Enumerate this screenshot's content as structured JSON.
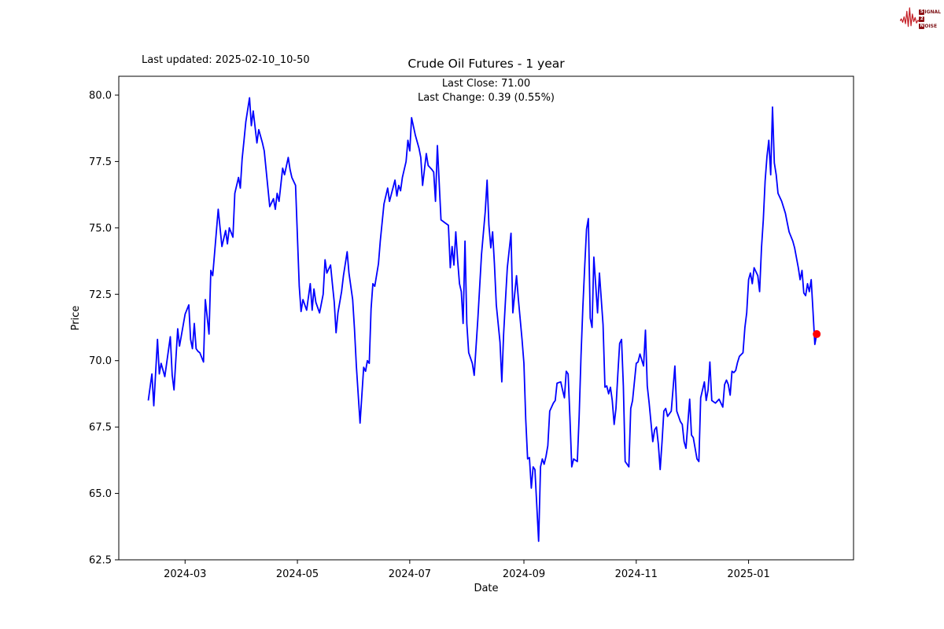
{
  "header": {
    "last_updated": "Last updated: 2025-02-10_10-50"
  },
  "logo": {
    "color": "#c41e25",
    "rows": [
      {
        "badge": "S",
        "rest": "IGNAL"
      },
      {
        "badge": "2",
        "rest": ""
      },
      {
        "badge": "N",
        "rest": "OISE"
      }
    ]
  },
  "chart_data": {
    "type": "line",
    "title": "Crude Oil Futures - 1 year",
    "subtitle1": "Last Close: 71.00",
    "subtitle2": "Last Change: 0.39 (0.55%)",
    "xlabel": "Date",
    "ylabel": "Price",
    "last_close": 71.0,
    "last_change": "0.39 (0.55%)",
    "line_color": "#0000ff",
    "marker_color": "#ff0000",
    "axis_color": "#000000",
    "x_range": [
      "2024-01-25",
      "2025-02-27"
    ],
    "y_range": [
      62.5,
      80.71
    ],
    "x_ticks": [
      {
        "date": "2024-03-01",
        "label": "2024-03"
      },
      {
        "date": "2024-05-01",
        "label": "2024-05"
      },
      {
        "date": "2024-07-01",
        "label": "2024-07"
      },
      {
        "date": "2024-09-01",
        "label": "2024-09"
      },
      {
        "date": "2024-11-01",
        "label": "2024-11"
      },
      {
        "date": "2025-01-01",
        "label": "2025-01"
      }
    ],
    "y_ticks": [
      {
        "value": 62.5,
        "label": "62.5"
      },
      {
        "value": 65.0,
        "label": "65.0"
      },
      {
        "value": 67.5,
        "label": "67.5"
      },
      {
        "value": 70.0,
        "label": "70.0"
      },
      {
        "value": 72.5,
        "label": "72.5"
      },
      {
        "value": 75.0,
        "label": "75.0"
      },
      {
        "value": 77.5,
        "label": "77.5"
      },
      {
        "value": 80.0,
        "label": "80.0"
      }
    ],
    "series": [
      [
        "2024-02-10",
        68.5
      ],
      [
        "2024-02-12",
        69.5
      ],
      [
        "2024-02-13",
        68.3
      ],
      [
        "2024-02-15",
        70.8
      ],
      [
        "2024-02-16",
        69.5
      ],
      [
        "2024-02-17",
        69.9
      ],
      [
        "2024-02-19",
        69.4
      ],
      [
        "2024-02-22",
        70.9
      ],
      [
        "2024-02-23",
        69.45
      ],
      [
        "2024-02-24",
        68.9
      ],
      [
        "2024-02-26",
        71.2
      ],
      [
        "2024-02-27",
        70.55
      ],
      [
        "2024-03-01",
        71.75
      ],
      [
        "2024-03-03",
        72.1
      ],
      [
        "2024-03-04",
        70.8
      ],
      [
        "2024-03-05",
        70.45
      ],
      [
        "2024-03-06",
        71.4
      ],
      [
        "2024-03-07",
        70.45
      ],
      [
        "2024-03-08",
        70.35
      ],
      [
        "2024-03-09",
        70.3
      ],
      [
        "2024-03-11",
        69.95
      ],
      [
        "2024-03-12",
        72.3
      ],
      [
        "2024-03-14",
        71.0
      ],
      [
        "2024-03-15",
        73.4
      ],
      [
        "2024-03-16",
        73.2
      ],
      [
        "2024-03-19",
        75.7
      ],
      [
        "2024-03-21",
        74.3
      ],
      [
        "2024-03-23",
        74.9
      ],
      [
        "2024-03-24",
        74.4
      ],
      [
        "2024-03-25",
        75.0
      ],
      [
        "2024-03-27",
        74.65
      ],
      [
        "2024-03-28",
        76.3
      ],
      [
        "2024-03-30",
        76.9
      ],
      [
        "2024-03-31",
        76.5
      ],
      [
        "2024-04-01",
        77.6
      ],
      [
        "2024-04-02",
        78.3
      ],
      [
        "2024-04-03",
        79.0
      ],
      [
        "2024-04-05",
        79.9
      ],
      [
        "2024-04-06",
        78.85
      ],
      [
        "2024-04-07",
        79.4
      ],
      [
        "2024-04-09",
        78.2
      ],
      [
        "2024-04-10",
        78.7
      ],
      [
        "2024-04-12",
        78.2
      ],
      [
        "2024-04-13",
        77.9
      ],
      [
        "2024-04-16",
        75.8
      ],
      [
        "2024-04-18",
        76.1
      ],
      [
        "2024-04-19",
        75.7
      ],
      [
        "2024-04-20",
        76.3
      ],
      [
        "2024-04-21",
        76.0
      ],
      [
        "2024-04-23",
        77.25
      ],
      [
        "2024-04-24",
        77.0
      ],
      [
        "2024-04-26",
        77.65
      ],
      [
        "2024-04-27",
        77.2
      ],
      [
        "2024-04-28",
        76.9
      ],
      [
        "2024-04-30",
        76.6
      ],
      [
        "2024-05-02",
        72.8
      ],
      [
        "2024-05-03",
        71.85
      ],
      [
        "2024-05-04",
        72.3
      ],
      [
        "2024-05-06",
        71.9
      ],
      [
        "2024-05-08",
        72.9
      ],
      [
        "2024-05-09",
        71.9
      ],
      [
        "2024-05-10",
        72.7
      ],
      [
        "2024-05-11",
        72.2
      ],
      [
        "2024-05-13",
        71.8
      ],
      [
        "2024-05-15",
        72.5
      ],
      [
        "2024-05-16",
        73.8
      ],
      [
        "2024-05-17",
        73.3
      ],
      [
        "2024-05-19",
        73.6
      ],
      [
        "2024-05-20",
        72.9
      ],
      [
        "2024-05-21",
        72.2
      ],
      [
        "2024-05-22",
        71.05
      ],
      [
        "2024-05-23",
        71.8
      ],
      [
        "2024-05-25",
        72.6
      ],
      [
        "2024-05-26",
        73.2
      ],
      [
        "2024-05-28",
        74.1
      ],
      [
        "2024-05-29",
        73.3
      ],
      [
        "2024-05-31",
        72.3
      ],
      [
        "2024-06-01",
        71.2
      ],
      [
        "2024-06-02",
        69.8
      ],
      [
        "2024-06-04",
        67.65
      ],
      [
        "2024-06-06",
        69.75
      ],
      [
        "2024-06-07",
        69.6
      ],
      [
        "2024-06-08",
        70.0
      ],
      [
        "2024-06-09",
        69.9
      ],
      [
        "2024-06-10",
        71.95
      ],
      [
        "2024-06-11",
        72.9
      ],
      [
        "2024-06-12",
        72.8
      ],
      [
        "2024-06-14",
        73.65
      ],
      [
        "2024-06-15",
        74.5
      ],
      [
        "2024-06-17",
        75.9
      ],
      [
        "2024-06-19",
        76.5
      ],
      [
        "2024-06-20",
        76.0
      ],
      [
        "2024-06-23",
        76.8
      ],
      [
        "2024-06-24",
        76.2
      ],
      [
        "2024-06-25",
        76.6
      ],
      [
        "2024-06-26",
        76.4
      ],
      [
        "2024-06-27",
        76.9
      ],
      [
        "2024-06-29",
        77.5
      ],
      [
        "2024-06-30",
        78.3
      ],
      [
        "2024-07-01",
        77.9
      ],
      [
        "2024-07-02",
        79.15
      ],
      [
        "2024-07-04",
        78.5
      ],
      [
        "2024-07-06",
        78.0
      ],
      [
        "2024-07-07",
        77.65
      ],
      [
        "2024-07-08",
        76.6
      ],
      [
        "2024-07-10",
        77.8
      ],
      [
        "2024-07-11",
        77.35
      ],
      [
        "2024-07-13",
        77.2
      ],
      [
        "2024-07-14",
        77.1
      ],
      [
        "2024-07-15",
        76.0
      ],
      [
        "2024-07-16",
        78.1
      ],
      [
        "2024-07-18",
        75.3
      ],
      [
        "2024-07-19",
        75.25
      ],
      [
        "2024-07-20",
        75.2
      ],
      [
        "2024-07-22",
        75.1
      ],
      [
        "2024-07-23",
        73.5
      ],
      [
        "2024-07-24",
        74.3
      ],
      [
        "2024-07-25",
        73.6
      ],
      [
        "2024-07-26",
        74.85
      ],
      [
        "2024-07-27",
        73.8
      ],
      [
        "2024-07-28",
        72.9
      ],
      [
        "2024-07-29",
        72.6
      ],
      [
        "2024-07-30",
        71.4
      ],
      [
        "2024-07-31",
        74.5
      ],
      [
        "2024-08-01",
        71.4
      ],
      [
        "2024-08-02",
        70.3
      ],
      [
        "2024-08-03",
        70.1
      ],
      [
        "2024-08-04",
        69.9
      ],
      [
        "2024-08-05",
        69.45
      ],
      [
        "2024-08-06",
        70.5
      ],
      [
        "2024-08-07",
        71.6
      ],
      [
        "2024-08-08",
        72.8
      ],
      [
        "2024-08-09",
        74.0
      ],
      [
        "2024-08-11",
        75.6
      ],
      [
        "2024-08-12",
        76.8
      ],
      [
        "2024-08-13",
        75.1
      ],
      [
        "2024-08-14",
        74.25
      ],
      [
        "2024-08-15",
        74.85
      ],
      [
        "2024-08-16",
        73.65
      ],
      [
        "2024-08-17",
        72.1
      ],
      [
        "2024-08-19",
        70.7
      ],
      [
        "2024-08-20",
        69.2
      ],
      [
        "2024-08-21",
        71.0
      ],
      [
        "2024-08-22",
        72.3
      ],
      [
        "2024-08-23",
        73.5
      ],
      [
        "2024-08-25",
        74.8
      ],
      [
        "2024-08-26",
        71.8
      ],
      [
        "2024-08-28",
        73.2
      ],
      [
        "2024-08-29",
        72.3
      ],
      [
        "2024-08-31",
        70.8
      ],
      [
        "2024-09-01",
        69.9
      ],
      [
        "2024-09-02",
        67.8
      ],
      [
        "2024-09-03",
        66.3
      ],
      [
        "2024-09-04",
        66.35
      ],
      [
        "2024-09-05",
        65.2
      ],
      [
        "2024-09-06",
        66.0
      ],
      [
        "2024-09-07",
        65.9
      ],
      [
        "2024-09-09",
        63.2
      ],
      [
        "2024-09-10",
        66.0
      ],
      [
        "2024-09-11",
        66.3
      ],
      [
        "2024-09-12",
        66.1
      ],
      [
        "2024-09-13",
        66.4
      ],
      [
        "2024-09-14",
        66.8
      ],
      [
        "2024-09-15",
        68.1
      ],
      [
        "2024-09-17",
        68.4
      ],
      [
        "2024-09-18",
        68.5
      ],
      [
        "2024-09-19",
        69.15
      ],
      [
        "2024-09-21",
        69.2
      ],
      [
        "2024-09-22",
        68.9
      ],
      [
        "2024-09-23",
        68.6
      ],
      [
        "2024-09-24",
        69.6
      ],
      [
        "2024-09-25",
        69.5
      ],
      [
        "2024-09-26",
        67.85
      ],
      [
        "2024-09-27",
        66.0
      ],
      [
        "2024-09-28",
        66.3
      ],
      [
        "2024-09-30",
        66.2
      ],
      [
        "2024-10-01",
        67.9
      ],
      [
        "2024-10-02",
        70.2
      ],
      [
        "2024-10-03",
        72.0
      ],
      [
        "2024-10-04",
        73.5
      ],
      [
        "2024-10-05",
        74.95
      ],
      [
        "2024-10-06",
        75.35
      ],
      [
        "2024-10-07",
        71.6
      ],
      [
        "2024-10-08",
        71.25
      ],
      [
        "2024-10-09",
        73.9
      ],
      [
        "2024-10-11",
        71.8
      ],
      [
        "2024-10-12",
        73.3
      ],
      [
        "2024-10-14",
        71.35
      ],
      [
        "2024-10-15",
        69.0
      ],
      [
        "2024-10-16",
        69.05
      ],
      [
        "2024-10-17",
        68.75
      ],
      [
        "2024-10-18",
        69.0
      ],
      [
        "2024-10-19",
        68.5
      ],
      [
        "2024-10-20",
        67.6
      ],
      [
        "2024-10-21",
        68.2
      ],
      [
        "2024-10-22",
        69.5
      ],
      [
        "2024-10-23",
        70.65
      ],
      [
        "2024-10-24",
        70.8
      ],
      [
        "2024-10-25",
        69.05
      ],
      [
        "2024-10-26",
        66.2
      ],
      [
        "2024-10-27",
        66.1
      ],
      [
        "2024-10-28",
        66.0
      ],
      [
        "2024-10-29",
        68.2
      ],
      [
        "2024-10-30",
        68.5
      ],
      [
        "2024-11-01",
        69.9
      ],
      [
        "2024-11-02",
        69.95
      ],
      [
        "2024-11-03",
        70.25
      ],
      [
        "2024-11-05",
        69.8
      ],
      [
        "2024-11-06",
        71.15
      ],
      [
        "2024-11-07",
        69.05
      ],
      [
        "2024-11-08",
        68.4
      ],
      [
        "2024-11-10",
        66.95
      ],
      [
        "2024-11-11",
        67.4
      ],
      [
        "2024-11-12",
        67.5
      ],
      [
        "2024-11-13",
        66.85
      ],
      [
        "2024-11-14",
        65.9
      ],
      [
        "2024-11-15",
        66.95
      ],
      [
        "2024-11-16",
        68.1
      ],
      [
        "2024-11-17",
        68.2
      ],
      [
        "2024-11-18",
        67.9
      ],
      [
        "2024-11-19",
        68.0
      ],
      [
        "2024-11-20",
        68.1
      ],
      [
        "2024-11-22",
        69.8
      ],
      [
        "2024-11-23",
        68.1
      ],
      [
        "2024-11-25",
        67.7
      ],
      [
        "2024-11-26",
        67.6
      ],
      [
        "2024-11-27",
        66.95
      ],
      [
        "2024-11-28",
        66.7
      ],
      [
        "2024-11-30",
        68.55
      ],
      [
        "2024-12-01",
        67.2
      ],
      [
        "2024-12-02",
        67.1
      ],
      [
        "2024-12-04",
        66.3
      ],
      [
        "2024-12-05",
        66.2
      ],
      [
        "2024-12-06",
        68.6
      ],
      [
        "2024-12-08",
        69.2
      ],
      [
        "2024-12-09",
        68.5
      ],
      [
        "2024-12-10",
        68.9
      ],
      [
        "2024-12-11",
        69.95
      ],
      [
        "2024-12-12",
        68.5
      ],
      [
        "2024-12-14",
        68.4
      ],
      [
        "2024-12-16",
        68.55
      ],
      [
        "2024-12-18",
        68.25
      ],
      [
        "2024-12-19",
        69.1
      ],
      [
        "2024-12-20",
        69.27
      ],
      [
        "2024-12-21",
        69.1
      ],
      [
        "2024-12-22",
        68.7
      ],
      [
        "2024-12-23",
        69.6
      ],
      [
        "2024-12-24",
        69.55
      ],
      [
        "2024-12-25",
        69.63
      ],
      [
        "2024-12-26",
        69.93
      ],
      [
        "2024-12-27",
        70.16
      ],
      [
        "2024-12-29",
        70.3
      ],
      [
        "2024-12-30",
        71.25
      ],
      [
        "2024-12-31",
        71.8
      ],
      [
        "2025-01-01",
        73.05
      ],
      [
        "2025-01-02",
        73.3
      ],
      [
        "2025-01-03",
        72.9
      ],
      [
        "2025-01-04",
        73.5
      ],
      [
        "2025-01-06",
        73.2
      ],
      [
        "2025-01-07",
        72.6
      ],
      [
        "2025-01-08",
        74.25
      ],
      [
        "2025-01-09",
        75.3
      ],
      [
        "2025-01-10",
        76.76
      ],
      [
        "2025-01-11",
        77.7
      ],
      [
        "2025-01-12",
        78.3
      ],
      [
        "2025-01-13",
        77.0
      ],
      [
        "2025-01-14",
        79.55
      ],
      [
        "2025-01-15",
        77.45
      ],
      [
        "2025-01-16",
        77.0
      ],
      [
        "2025-01-17",
        76.3
      ],
      [
        "2025-01-19",
        76.0
      ],
      [
        "2025-01-21",
        75.55
      ],
      [
        "2025-01-22",
        75.2
      ],
      [
        "2025-01-23",
        74.85
      ],
      [
        "2025-01-25",
        74.5
      ],
      [
        "2025-01-26",
        74.25
      ],
      [
        "2025-01-28",
        73.5
      ],
      [
        "2025-01-29",
        73.05
      ],
      [
        "2025-01-30",
        73.4
      ],
      [
        "2025-01-31",
        72.55
      ],
      [
        "2025-02-01",
        72.45
      ],
      [
        "2025-02-02",
        72.9
      ],
      [
        "2025-02-03",
        72.6
      ],
      [
        "2025-02-04",
        73.05
      ],
      [
        "2025-02-05",
        71.85
      ],
      [
        "2025-02-06",
        70.61
      ],
      [
        "2025-02-07",
        71.0
      ]
    ]
  }
}
